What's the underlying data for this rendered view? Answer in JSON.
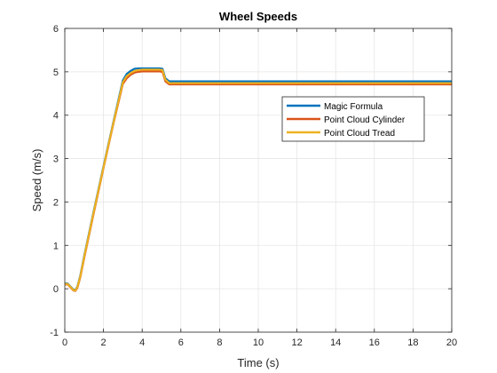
{
  "chart_data": {
    "type": "line",
    "title": "Wheel Speeds",
    "xlabel": "Time (s)",
    "ylabel": "Speed (m/s)",
    "xlim": [
      0,
      20
    ],
    "ylim": [
      -1,
      6
    ],
    "xticks": [
      0,
      2,
      4,
      6,
      8,
      10,
      12,
      14,
      16,
      18,
      20
    ],
    "yticks": [
      -1,
      0,
      1,
      2,
      3,
      4,
      5,
      6
    ],
    "grid": true,
    "legend_position": "top-right",
    "series": [
      {
        "name": "Magic Formula",
        "color": "#0072BD",
        "x": [
          0,
          0.15,
          0.3,
          0.45,
          0.55,
          0.65,
          0.8,
          1.0,
          1.5,
          2.0,
          2.5,
          3.0,
          3.2,
          3.4,
          3.6,
          3.8,
          4.0,
          4.5,
          4.9,
          5.05,
          5.2,
          5.4,
          6,
          8,
          10,
          12,
          14,
          16,
          18,
          20
        ],
        "y": [
          0.12,
          0.12,
          0.05,
          -0.02,
          -0.03,
          0.05,
          0.3,
          0.75,
          1.8,
          2.82,
          3.82,
          4.8,
          4.95,
          5.02,
          5.07,
          5.08,
          5.08,
          5.08,
          5.08,
          5.07,
          4.85,
          4.78,
          4.78,
          4.78,
          4.78,
          4.78,
          4.78,
          4.78,
          4.78,
          4.78
        ]
      },
      {
        "name": "Point Cloud Cylinder",
        "color": "#D95319",
        "x": [
          0,
          0.15,
          0.3,
          0.45,
          0.55,
          0.65,
          0.8,
          1.0,
          1.5,
          2.0,
          2.5,
          3.0,
          3.2,
          3.4,
          3.6,
          3.8,
          4.0,
          4.5,
          4.9,
          5.05,
          5.2,
          5.4,
          6,
          8,
          10,
          12,
          14,
          16,
          18,
          20
        ],
        "y": [
          0.1,
          0.1,
          0.03,
          -0.04,
          -0.05,
          0.02,
          0.26,
          0.7,
          1.75,
          2.78,
          3.78,
          4.72,
          4.85,
          4.93,
          4.98,
          5.0,
          5.01,
          5.01,
          5.01,
          5.0,
          4.78,
          4.71,
          4.71,
          4.71,
          4.71,
          4.71,
          4.71,
          4.71,
          4.71,
          4.71
        ]
      },
      {
        "name": "Point Cloud Tread",
        "color": "#EDB120",
        "x": [
          0,
          0.15,
          0.3,
          0.45,
          0.55,
          0.65,
          0.8,
          1.0,
          1.5,
          2.0,
          2.5,
          3.0,
          3.2,
          3.4,
          3.6,
          3.8,
          4.0,
          4.5,
          4.9,
          5.05,
          5.2,
          5.4,
          6,
          8,
          10,
          12,
          14,
          16,
          18,
          20
        ],
        "y": [
          0.11,
          0.11,
          0.04,
          -0.03,
          -0.04,
          0.04,
          0.28,
          0.73,
          1.78,
          2.8,
          3.8,
          4.76,
          4.9,
          4.97,
          5.02,
          5.04,
          5.05,
          5.05,
          5.05,
          5.04,
          4.82,
          4.74,
          4.74,
          4.74,
          4.74,
          4.74,
          4.74,
          4.74,
          4.74,
          4.74
        ]
      }
    ]
  }
}
